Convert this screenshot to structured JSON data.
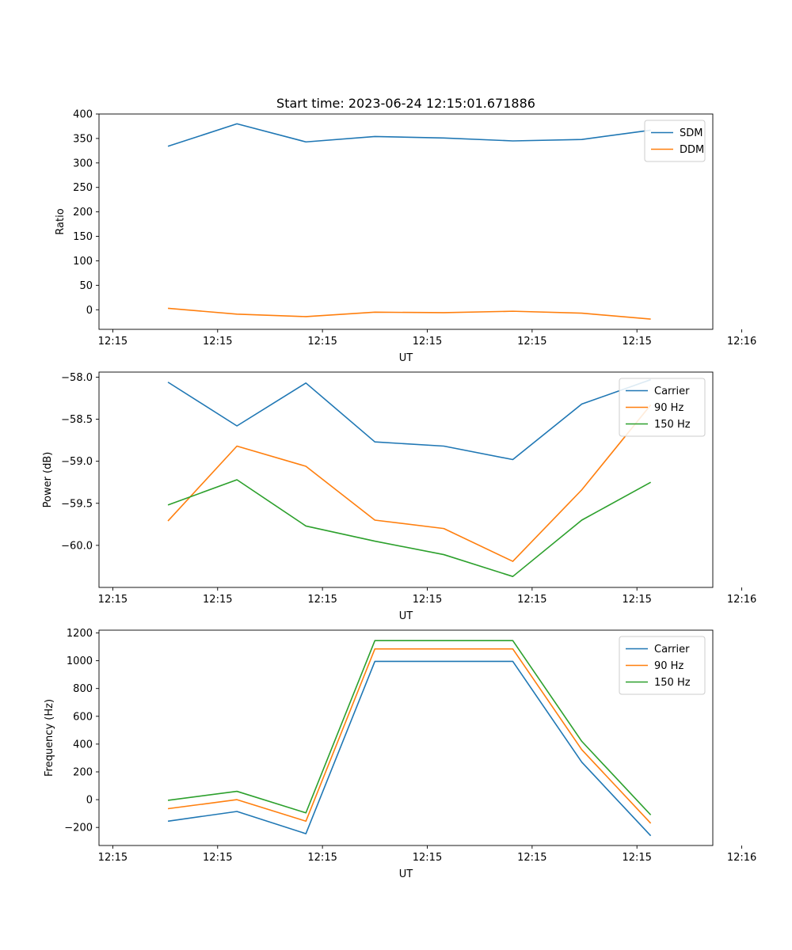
{
  "chart_data": [
    {
      "type": "line",
      "title": "Start time: 2023-06-24 12:15:01.671886",
      "xlabel": "UT",
      "ylabel": "Ratio",
      "xlim": [
        0,
        8.9
      ],
      "ylim": [
        -40,
        400
      ],
      "x": [
        1,
        2,
        3,
        4,
        5,
        6,
        7,
        8
      ],
      "xticks": {
        "positions": [
          0.2,
          1.72,
          3.24,
          4.76,
          6.28,
          7.8,
          9.32
        ],
        "labels": [
          "12:15",
          "12:15",
          "12:15",
          "12:15",
          "12:15",
          "12:15",
          "12:16"
        ]
      },
      "yticks": [
        0,
        50,
        100,
        150,
        200,
        250,
        300,
        350,
        400
      ],
      "series": [
        {
          "name": "SDM",
          "color": "#1f77b4",
          "values": [
            334,
            380,
            343,
            354,
            351,
            345,
            348,
            367
          ]
        },
        {
          "name": "DDM",
          "color": "#ff7f0e",
          "values": [
            3,
            -9,
            -14,
            -5,
            -6,
            -3,
            -7,
            -19
          ]
        }
      ],
      "legend": "top-right",
      "grid": false
    },
    {
      "type": "line",
      "title": "",
      "xlabel": "UT",
      "ylabel": "Power (dB)",
      "xlim": [
        0,
        8.9
      ],
      "ylim": [
        -60.5,
        -57.94
      ],
      "x": [
        1,
        2,
        3,
        4,
        5,
        6,
        7,
        8
      ],
      "xticks": {
        "positions": [
          0.2,
          1.72,
          3.24,
          4.76,
          6.28,
          7.8,
          9.32
        ],
        "labels": [
          "12:15",
          "12:15",
          "12:15",
          "12:15",
          "12:15",
          "12:15",
          "12:16"
        ]
      },
      "yticks": [
        -60.0,
        -59.5,
        -59.0,
        -58.5,
        -58.0
      ],
      "ytick_labels": [
        "−60.0",
        "−59.5",
        "−59.0",
        "−58.5",
        "−58.0"
      ],
      "series": [
        {
          "name": "Carrier",
          "color": "#1f77b4",
          "values": [
            -58.06,
            -58.58,
            -58.07,
            -58.77,
            -58.82,
            -58.98,
            -58.32,
            -58.03
          ]
        },
        {
          "name": "90 Hz",
          "color": "#ff7f0e",
          "values": [
            -59.71,
            -58.82,
            -59.06,
            -59.7,
            -59.8,
            -60.19,
            -59.34,
            -58.33
          ]
        },
        {
          "name": "150 Hz",
          "color": "#2ca02c",
          "values": [
            -59.52,
            -59.22,
            -59.77,
            -59.95,
            -60.11,
            -60.37,
            -59.7,
            -59.25
          ]
        }
      ],
      "legend": "top-right",
      "grid": false
    },
    {
      "type": "line",
      "title": "",
      "xlabel": "UT",
      "ylabel": "Frequency (Hz)",
      "xlim": [
        0,
        8.9
      ],
      "ylim": [
        -330,
        1220
      ],
      "x": [
        1,
        2,
        3,
        4,
        5,
        6,
        7,
        8
      ],
      "xticks": {
        "positions": [
          0.2,
          1.72,
          3.24,
          4.76,
          6.28,
          7.8,
          9.32
        ],
        "labels": [
          "12:15",
          "12:15",
          "12:15",
          "12:15",
          "12:15",
          "12:15",
          "12:16"
        ]
      },
      "yticks": [
        -200,
        0,
        200,
        400,
        600,
        800,
        1000,
        1200
      ],
      "ytick_labels": [
        "−200",
        "0",
        "200",
        "400",
        "600",
        "800",
        "1000",
        "1200"
      ],
      "series": [
        {
          "name": "Carrier",
          "color": "#1f77b4",
          "values": [
            -155,
            -85,
            -245,
            995,
            995,
            995,
            270,
            -260
          ]
        },
        {
          "name": "90 Hz",
          "color": "#ff7f0e",
          "values": [
            -65,
            0,
            -155,
            1085,
            1085,
            1085,
            360,
            -170
          ]
        },
        {
          "name": "150 Hz",
          "color": "#2ca02c",
          "values": [
            -5,
            60,
            -95,
            1145,
            1145,
            1145,
            420,
            -110
          ]
        }
      ],
      "legend": "top-right",
      "grid": false
    }
  ]
}
